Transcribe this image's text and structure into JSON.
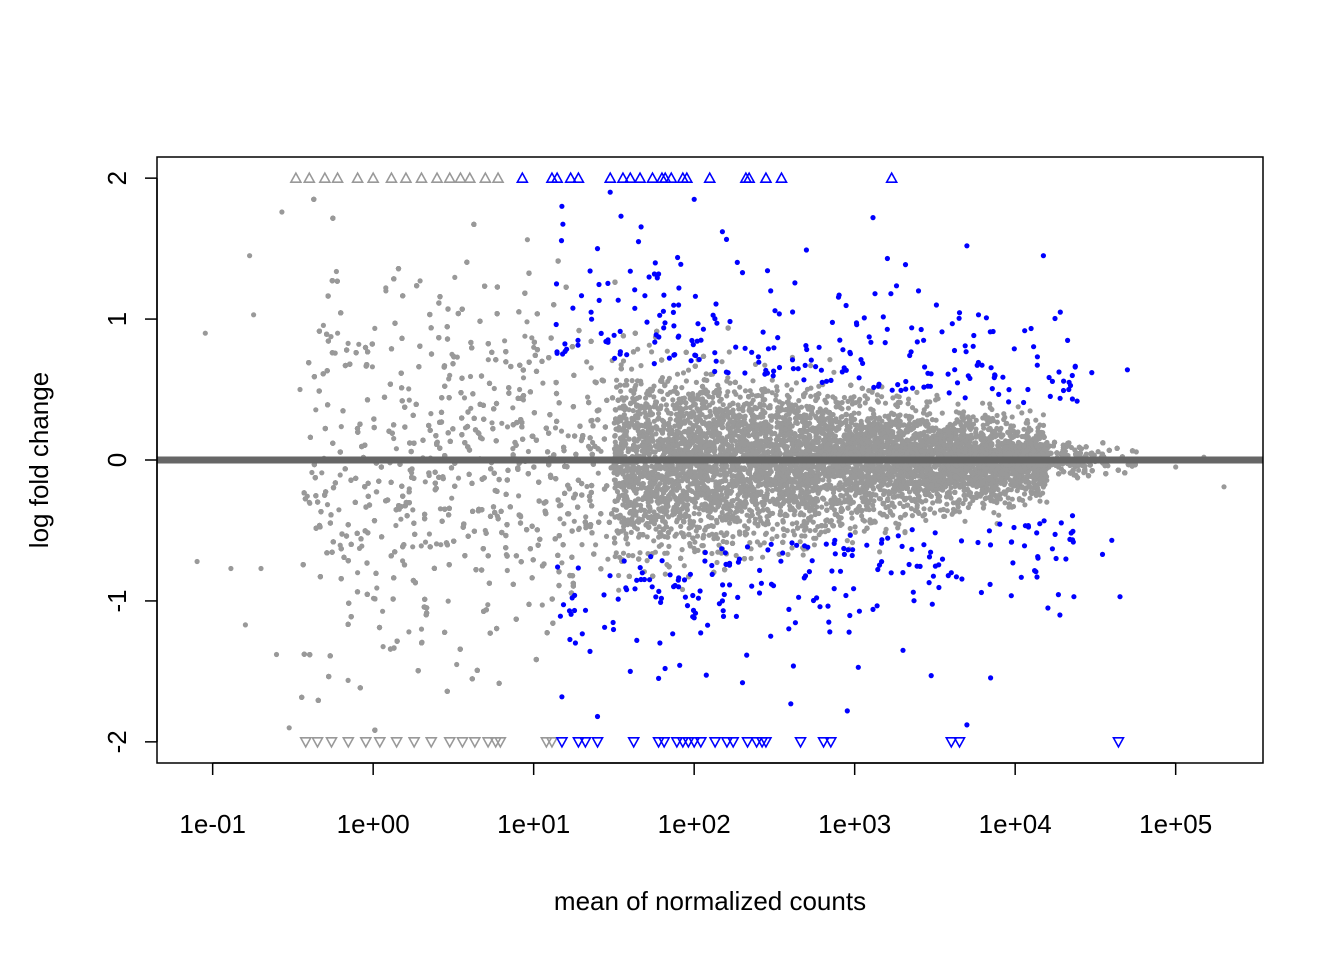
{
  "chart_data": {
    "type": "scatter",
    "title": "",
    "xlabel": "mean of normalized counts",
    "ylabel": "log fold change",
    "x_scale": "log10",
    "xlim": [
      0.045,
      350000
    ],
    "ylim": [
      -2.15,
      2.15
    ],
    "x_ticks": [
      0.1,
      1,
      10,
      100,
      1000,
      10000,
      100000
    ],
    "x_tick_labels": [
      "1e-01",
      "1e+00",
      "1e+01",
      "1e+02",
      "1e+03",
      "1e+04",
      "1e+05"
    ],
    "y_ticks": [
      -2,
      -1,
      0,
      1,
      2
    ],
    "y_tick_labels": [
      "-2",
      "-1",
      "0",
      "1",
      "2"
    ],
    "reference_line": {
      "y": 0,
      "color": "#666666"
    },
    "grid": false,
    "colors": {
      "non_significant": "#999999",
      "significant": "#0000ff"
    },
    "series": [
      {
        "marker": "dot",
        "color": "#999999",
        "summary_points": [
          [
            0.09,
            0.9
          ],
          [
            0.08,
            -0.72
          ],
          [
            0.13,
            -0.77
          ],
          [
            0.16,
            -1.17
          ],
          [
            0.17,
            1.45
          ],
          [
            0.18,
            1.03
          ],
          [
            0.2,
            -0.77
          ],
          [
            0.25,
            -1.38
          ],
          [
            0.27,
            1.76
          ],
          [
            0.3,
            -1.9
          ],
          [
            0.35,
            0.5
          ],
          [
            0.4,
            -0.3
          ],
          [
            0.6,
            0.9
          ],
          [
            0.8,
            -0.8
          ],
          [
            1.2,
            1.2
          ],
          [
            2.0,
            -1.2
          ],
          [
            3.0,
            0.6
          ],
          [
            5.0,
            -0.5
          ],
          [
            10,
            0.8
          ],
          [
            20,
            -0.6
          ],
          [
            50,
            0.4
          ],
          [
            100,
            -0.3
          ],
          [
            300,
            0.2
          ],
          [
            1000,
            -0.2
          ],
          [
            3000,
            0.15
          ],
          [
            10000,
            -0.1
          ],
          [
            30000,
            0.05
          ],
          [
            100000,
            -0.05
          ],
          [
            150000,
            0.02
          ],
          [
            200000,
            -0.19
          ]
        ]
      },
      {
        "marker": "dot",
        "color": "#0000ff",
        "summary_points": [
          [
            15,
            1.8
          ],
          [
            25,
            1.5
          ],
          [
            30,
            1.9
          ],
          [
            35,
            1.73
          ],
          [
            40,
            1.34
          ],
          [
            45,
            1.55
          ],
          [
            60,
            1.32
          ],
          [
            80,
            1.1
          ],
          [
            100,
            1.85
          ],
          [
            150,
            1.62
          ],
          [
            200,
            1.33
          ],
          [
            300,
            1.2
          ],
          [
            500,
            1.49
          ],
          [
            600,
            0.8
          ],
          [
            800,
            1.17
          ],
          [
            1300,
            1.72
          ],
          [
            1600,
            1.43
          ],
          [
            2500,
            1.2
          ],
          [
            3500,
            0.91
          ],
          [
            5000,
            1.52
          ],
          [
            7000,
            0.91
          ],
          [
            15000,
            1.45
          ],
          [
            30000,
            0.62
          ],
          [
            50000,
            0.64
          ],
          [
            15,
            -1.68
          ],
          [
            25,
            -1.82
          ],
          [
            40,
            -1.5
          ],
          [
            60,
            -1.55
          ],
          [
            80,
            -0.9
          ],
          [
            100,
            -1.12
          ],
          [
            150,
            -1.0
          ],
          [
            200,
            -1.58
          ],
          [
            300,
            -1.25
          ],
          [
            400,
            -1.73
          ],
          [
            700,
            -1.22
          ],
          [
            900,
            -1.78
          ],
          [
            1300,
            -1.06
          ],
          [
            2000,
            -1.35
          ],
          [
            3000,
            -1.53
          ],
          [
            4000,
            -0.8
          ],
          [
            5000,
            -1.88
          ],
          [
            16000,
            -1.05
          ],
          [
            19000,
            -1.1
          ],
          [
            35000,
            -0.67
          ],
          [
            40000,
            -0.57
          ],
          [
            45000,
            -0.97
          ]
        ]
      },
      {
        "marker": "triangle-up",
        "color": "#999999",
        "summary_x": [
          0.33,
          0.4,
          0.5,
          0.6,
          0.8,
          1.0,
          1.3,
          1.6,
          2.0,
          2.5,
          3.0,
          3.5,
          4.0,
          5.0,
          6.0
        ],
        "y_value": 2
      },
      {
        "marker": "triangle-down",
        "color": "#999999",
        "summary_x": [
          0.38,
          0.45,
          0.55,
          0.7,
          0.9,
          1.1,
          1.4,
          1.8,
          2.3,
          3.0,
          3.6,
          4.3,
          5.2,
          5.8,
          6.2,
          12,
          13
        ],
        "y_value": -2
      },
      {
        "marker": "triangle-up",
        "color": "#0000ff",
        "x": [
          8.5,
          13,
          14,
          17,
          19,
          30,
          36,
          40,
          46,
          55,
          63,
          66,
          72,
          85,
          90,
          125,
          210,
          220,
          280,
          350,
          1700
        ],
        "y_value": 2
      },
      {
        "marker": "triangle-down",
        "color": "#0000ff",
        "x": [
          15,
          19,
          21,
          25,
          42,
          60,
          65,
          78,
          85,
          92,
          100,
          110,
          135,
          160,
          175,
          215,
          245,
          265,
          280,
          460,
          640,
          710,
          4000,
          4500,
          44000
        ],
        "y_value": -2
      }
    ]
  }
}
